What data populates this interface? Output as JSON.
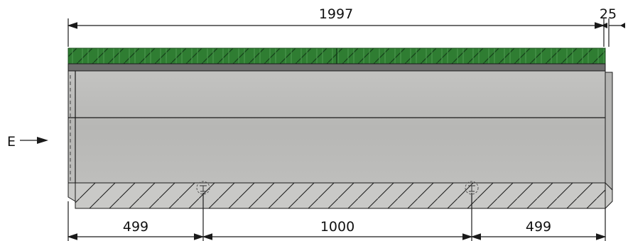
{
  "dimensions": {
    "total_length": "1997",
    "end_offset": "25",
    "left_segment": "499",
    "middle_segment": "1000",
    "right_segment": "499"
  },
  "section_marker": {
    "letter": "E",
    "arrow_icon": "arrow-right-icon"
  },
  "colors": {
    "grating_green": "#2f7d32",
    "grating_dark": "#1d4f1f",
    "frame_gray": "#6e6e6e",
    "concrete": "#b9b9b7",
    "concrete_light": "#c6c6c4",
    "base_fill": "#c9c9c7",
    "line": "#1a1a1a"
  }
}
